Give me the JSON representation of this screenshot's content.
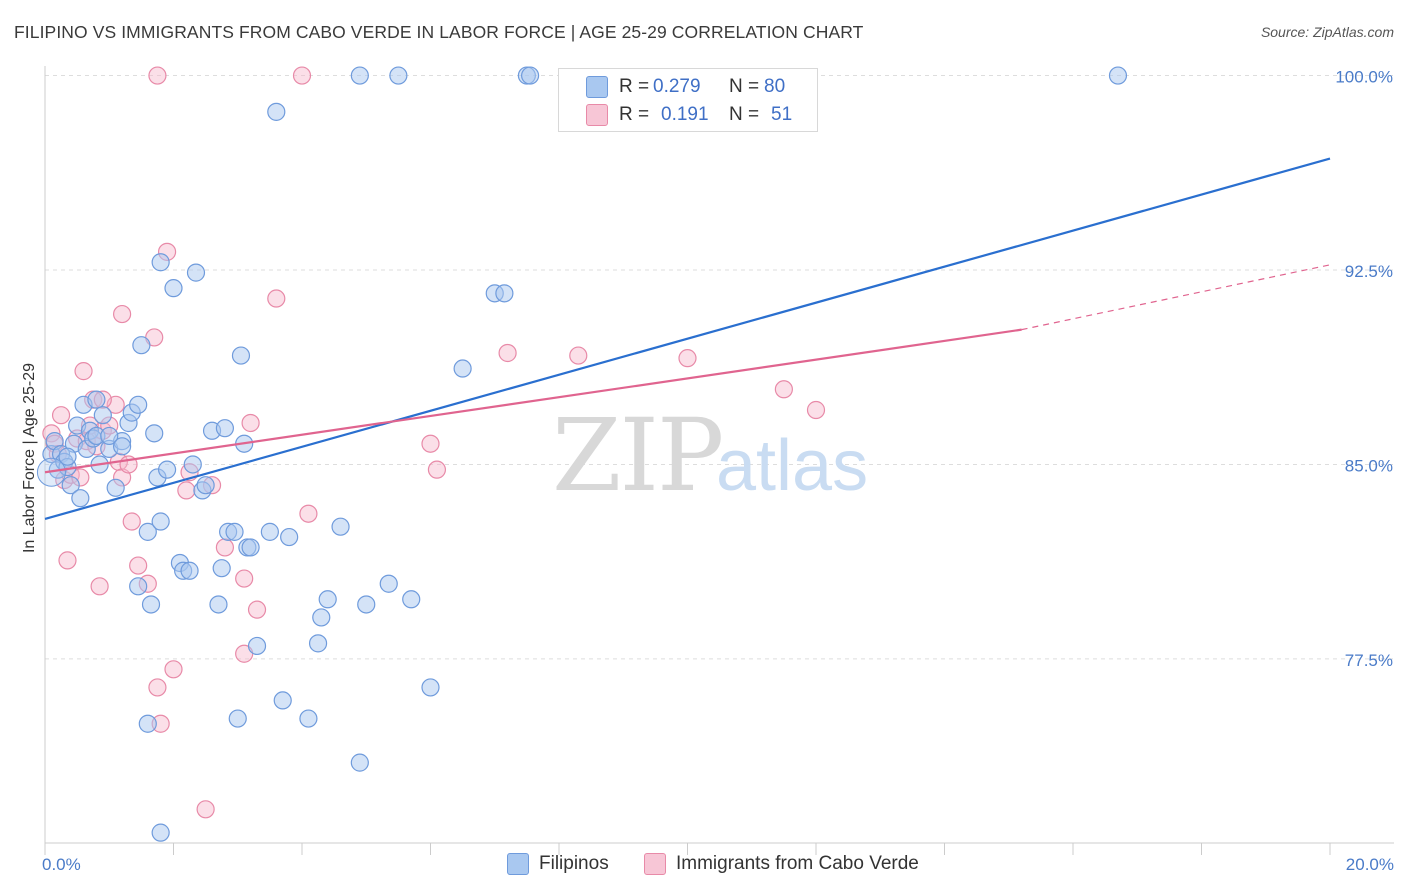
{
  "title": "FILIPINO VS IMMIGRANTS FROM CABO VERDE IN LABOR FORCE | AGE 25-29 CORRELATION CHART",
  "source": "Source: ZipAtlas.com",
  "watermark": {
    "zip": "ZIP",
    "atlas": "atlas"
  },
  "legend": {
    "r_label": "R =",
    "n_label": "N =",
    "series1": {
      "r": "0.279",
      "n": "80"
    },
    "series2": {
      "r": "0.191",
      "n": "51"
    }
  },
  "bottom_legend": {
    "series1": "Filipinos",
    "series2": "Immigrants from Cabo Verde"
  },
  "colors": {
    "blue_fill": "#a9c8f0",
    "blue_stroke": "#6f9bdc",
    "blue_line": "#2a6fcf",
    "pink_fill": "#f7b8cc",
    "pink_stroke": "#e88aa8",
    "pink_line": "#e0648f",
    "axis_text": "#4a7bc8",
    "grid": "#dddddd"
  },
  "chart_data": {
    "type": "scatter",
    "title": "FILIPINO VS IMMIGRANTS FROM CABO VERDE IN LABOR FORCE | AGE 25-29 CORRELATION CHART",
    "xlabel": "",
    "ylabel": "In Labor Force | Age 25-29",
    "xlim": [
      0,
      20
    ],
    "ylim": [
      70.4,
      100.6
    ],
    "x_tick_labels": [
      "0.0%",
      "20.0%"
    ],
    "y_ticks": [
      77.5,
      85.0,
      92.5,
      100.0
    ],
    "y_tick_labels": [
      "77.5%",
      "85.0%",
      "92.5%",
      "100.0%"
    ],
    "grid": true,
    "series": [
      {
        "name": "Filipinos",
        "r": 0.279,
        "n": 80,
        "trend": {
          "x": [
            0,
            20
          ],
          "y": [
            82.9,
            96.8
          ]
        },
        "points": [
          [
            0.1,
            85.4
          ],
          [
            0.15,
            85.9
          ],
          [
            0.2,
            84.8
          ],
          [
            0.25,
            85.4
          ],
          [
            0.3,
            85.1
          ],
          [
            0.35,
            84.9
          ],
          [
            0.4,
            84.2
          ],
          [
            0.45,
            85.8
          ],
          [
            0.5,
            86.5
          ],
          [
            0.55,
            83.7
          ],
          [
            0.6,
            87.3
          ],
          [
            0.65,
            85.6
          ],
          [
            0.7,
            86.3
          ],
          [
            0.75,
            86.0
          ],
          [
            0.8,
            87.5
          ],
          [
            0.85,
            85.0
          ],
          [
            0.9,
            86.9
          ],
          [
            1.0,
            85.6
          ],
          [
            1.1,
            84.1
          ],
          [
            1.2,
            85.9
          ],
          [
            1.3,
            86.6
          ],
          [
            1.35,
            87.0
          ],
          [
            1.45,
            87.3
          ],
          [
            1.5,
            89.6
          ],
          [
            1.6,
            82.4
          ],
          [
            1.7,
            86.2
          ],
          [
            1.75,
            84.5
          ],
          [
            1.8,
            82.8
          ],
          [
            1.9,
            84.8
          ],
          [
            2.0,
            91.8
          ],
          [
            2.1,
            81.2
          ],
          [
            2.15,
            80.9
          ],
          [
            2.25,
            80.9
          ],
          [
            2.35,
            92.4
          ],
          [
            2.45,
            84.0
          ],
          [
            2.5,
            84.2
          ],
          [
            2.6,
            86.3
          ],
          [
            2.7,
            79.6
          ],
          [
            2.75,
            81.0
          ],
          [
            2.8,
            86.4
          ],
          [
            2.85,
            82.4
          ],
          [
            2.95,
            82.4
          ],
          [
            3.0,
            75.2
          ],
          [
            3.05,
            89.2
          ],
          [
            3.1,
            85.8
          ],
          [
            3.15,
            81.8
          ],
          [
            3.3,
            78.0
          ],
          [
            3.5,
            82.4
          ],
          [
            3.7,
            75.9
          ],
          [
            3.8,
            82.2
          ],
          [
            4.1,
            75.2
          ],
          [
            4.25,
            78.1
          ],
          [
            4.3,
            79.1
          ],
          [
            4.4,
            79.8
          ],
          [
            4.6,
            82.6
          ],
          [
            4.9,
            73.5
          ],
          [
            5.0,
            79.6
          ],
          [
            5.35,
            80.4
          ],
          [
            5.7,
            79.8
          ],
          [
            6.0,
            76.4
          ],
          [
            6.5,
            88.7
          ],
          [
            7.0,
            91.6
          ],
          [
            7.15,
            91.6
          ],
          [
            7.5,
            100.0
          ],
          [
            7.55,
            100.0
          ],
          [
            1.8,
            92.8
          ],
          [
            3.6,
            98.6
          ],
          [
            4.9,
            100.0
          ],
          [
            5.5,
            100.0
          ],
          [
            16.7,
            100.0
          ],
          [
            1.8,
            70.8
          ],
          [
            1.6,
            75.0
          ],
          [
            1.45,
            80.3
          ],
          [
            1.65,
            79.6
          ],
          [
            2.3,
            85.0
          ],
          [
            3.2,
            81.8
          ],
          [
            0.8,
            86.1
          ],
          [
            0.35,
            85.3
          ],
          [
            1.0,
            86.1
          ],
          [
            1.2,
            85.7
          ]
        ]
      },
      {
        "name": "Immigrants from Cabo Verde",
        "r": 0.191,
        "n": 51,
        "trend": {
          "x": [
            0,
            15.2
          ],
          "y": [
            84.7,
            90.2
          ]
        },
        "trend_dashed": {
          "x": [
            15.2,
            20
          ],
          "y": [
            90.2,
            92.7
          ]
        },
        "points": [
          [
            0.1,
            86.2
          ],
          [
            0.15,
            85.8
          ],
          [
            0.2,
            85.4
          ],
          [
            0.25,
            86.9
          ],
          [
            0.3,
            84.4
          ],
          [
            0.35,
            81.3
          ],
          [
            0.4,
            84.6
          ],
          [
            0.5,
            86.0
          ],
          [
            0.55,
            84.5
          ],
          [
            0.6,
            88.6
          ],
          [
            0.65,
            85.9
          ],
          [
            0.7,
            86.5
          ],
          [
            0.75,
            87.5
          ],
          [
            0.8,
            85.7
          ],
          [
            0.85,
            80.3
          ],
          [
            0.9,
            86.3
          ],
          [
            1.0,
            86.5
          ],
          [
            1.1,
            87.3
          ],
          [
            1.15,
            85.1
          ],
          [
            1.2,
            84.5
          ],
          [
            1.35,
            82.8
          ],
          [
            1.45,
            81.1
          ],
          [
            1.6,
            80.4
          ],
          [
            1.7,
            89.9
          ],
          [
            1.75,
            76.4
          ],
          [
            1.8,
            75.0
          ],
          [
            1.9,
            93.2
          ],
          [
            2.0,
            77.1
          ],
          [
            2.2,
            84.0
          ],
          [
            2.25,
            84.7
          ],
          [
            2.5,
            71.7
          ],
          [
            2.6,
            84.2
          ],
          [
            2.8,
            81.8
          ],
          [
            3.1,
            80.6
          ],
          [
            3.3,
            79.4
          ],
          [
            3.6,
            91.4
          ],
          [
            4.1,
            83.1
          ],
          [
            1.2,
            90.8
          ],
          [
            0.9,
            87.5
          ],
          [
            1.3,
            85.0
          ],
          [
            3.2,
            86.6
          ],
          [
            3.1,
            77.7
          ],
          [
            6.0,
            85.8
          ],
          [
            6.1,
            84.8
          ],
          [
            7.2,
            89.3
          ],
          [
            8.3,
            89.2
          ],
          [
            10.0,
            89.1
          ],
          [
            11.5,
            87.9
          ],
          [
            12.0,
            87.1
          ],
          [
            1.75,
            100.0
          ],
          [
            4.0,
            100.0
          ]
        ]
      }
    ]
  }
}
